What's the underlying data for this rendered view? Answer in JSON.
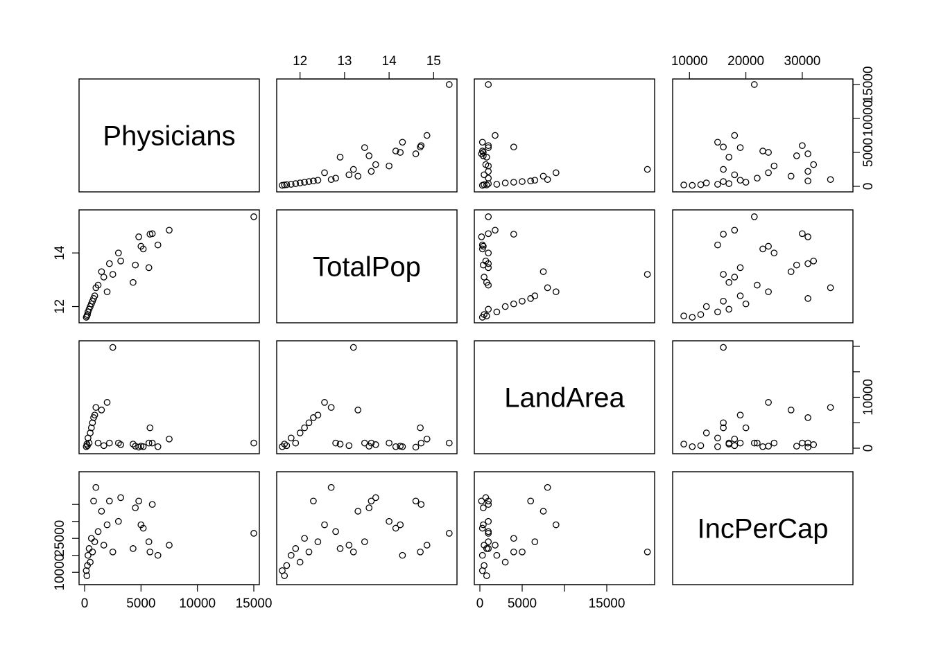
{
  "chart_data": {
    "type": "scatter",
    "subtype": "scatterplot-matrix",
    "variables": [
      "Physicians",
      "TotalPop",
      "LandArea",
      "IncPerCap"
    ],
    "ranges": {
      "Physicians": [
        0,
        15000
      ],
      "TotalPop": [
        11.6,
        15.4
      ],
      "LandArea": [
        0,
        20000
      ],
      "IncPerCap": [
        8000,
        38000
      ]
    },
    "axis_ticks": {
      "Physicians": {
        "values": [
          0,
          5000,
          10000,
          15000
        ],
        "labels": [
          "0",
          "5000",
          "10000",
          "15000"
        ]
      },
      "TotalPop": {
        "values": [
          12,
          13,
          14,
          15
        ],
        "labels": [
          "12",
          "13",
          "14",
          "15"
        ]
      },
      "TotalPop_left": {
        "values": [
          12,
          14
        ],
        "labels": [
          "12",
          "14"
        ]
      },
      "LandArea": {
        "values": [
          0,
          5000,
          10000,
          15000
        ],
        "labels": [
          "0",
          "5000",
          "",
          "15000"
        ]
      },
      "LandArea_right": {
        "values": [
          0,
          5000,
          10000,
          15000,
          20000
        ],
        "labels": [
          "0",
          "",
          "10000",
          "",
          ""
        ]
      },
      "IncPerCap": {
        "values": [
          10000,
          20000,
          30000
        ],
        "labels": [
          "10000",
          "20000",
          "30000"
        ]
      },
      "IncPerCap_left": {
        "values": [
          10000,
          15000,
          20000,
          25000,
          30000
        ],
        "labels": [
          "10000",
          "",
          "25000",
          "",
          ""
        ]
      }
    },
    "grid": false,
    "legend": "none",
    "point_style": "open-circle",
    "observations": [
      {
        "Physicians": 15000,
        "TotalPop": 15.35,
        "LandArea": 1000,
        "IncPerCap": 21500
      },
      {
        "Physicians": 7500,
        "TotalPop": 14.85,
        "LandArea": 1800,
        "IncPerCap": 18000
      },
      {
        "Physicians": 6500,
        "TotalPop": 14.3,
        "LandArea": 300,
        "IncPerCap": 15000
      },
      {
        "Physicians": 6000,
        "TotalPop": 14.72,
        "LandArea": 1000,
        "IncPerCap": 30000
      },
      {
        "Physicians": 5800,
        "TotalPop": 14.7,
        "LandArea": 4000,
        "IncPerCap": 16000
      },
      {
        "Physicians": 5700,
        "TotalPop": 13.45,
        "LandArea": 1000,
        "IncPerCap": 19000
      },
      {
        "Physicians": 5200,
        "TotalPop": 14.15,
        "LandArea": 300,
        "IncPerCap": 23000
      },
      {
        "Physicians": 5000,
        "TotalPop": 14.25,
        "LandArea": 400,
        "IncPerCap": 24000
      },
      {
        "Physicians": 4800,
        "TotalPop": 14.6,
        "LandArea": 200,
        "IncPerCap": 31000
      },
      {
        "Physicians": 4500,
        "TotalPop": 13.55,
        "LandArea": 400,
        "IncPerCap": 29000
      },
      {
        "Physicians": 4300,
        "TotalPop": 12.9,
        "LandArea": 800,
        "IncPerCap": 17000
      },
      {
        "Physicians": 3200,
        "TotalPop": 13.7,
        "LandArea": 700,
        "IncPerCap": 32000
      },
      {
        "Physicians": 3000,
        "TotalPop": 14.0,
        "LandArea": 1000,
        "IncPerCap": 25000
      },
      {
        "Physicians": 2500,
        "TotalPop": 13.2,
        "LandArea": 19800,
        "IncPerCap": 16000
      },
      {
        "Physicians": 2200,
        "TotalPop": 13.6,
        "LandArea": 1000,
        "IncPerCap": 31000
      },
      {
        "Physicians": 2000,
        "TotalPop": 12.55,
        "LandArea": 9000,
        "IncPerCap": 24000
      },
      {
        "Physicians": 1700,
        "TotalPop": 13.1,
        "LandArea": 500,
        "IncPerCap": 18000
      },
      {
        "Physicians": 1500,
        "TotalPop": 13.3,
        "LandArea": 7500,
        "IncPerCap": 28000
      },
      {
        "Physicians": 1200,
        "TotalPop": 12.8,
        "LandArea": 1000,
        "IncPerCap": 22000
      },
      {
        "Physicians": 1000,
        "TotalPop": 12.7,
        "LandArea": 8000,
        "IncPerCap": 35000
      },
      {
        "Physicians": 900,
        "TotalPop": 12.4,
        "LandArea": 6500,
        "IncPerCap": 19000
      },
      {
        "Physicians": 800,
        "TotalPop": 12.3,
        "LandArea": 6000,
        "IncPerCap": 31000
      },
      {
        "Physicians": 700,
        "TotalPop": 12.2,
        "LandArea": 5000,
        "IncPerCap": 16000
      },
      {
        "Physicians": 600,
        "TotalPop": 12.1,
        "LandArea": 4000,
        "IncPerCap": 20000
      },
      {
        "Physicians": 500,
        "TotalPop": 12.0,
        "LandArea": 3000,
        "IncPerCap": 13000
      },
      {
        "Physicians": 400,
        "TotalPop": 11.9,
        "LandArea": 1000,
        "IncPerCap": 17000
      },
      {
        "Physicians": 300,
        "TotalPop": 11.8,
        "LandArea": 2000,
        "IncPerCap": 15000
      },
      {
        "Physicians": 250,
        "TotalPop": 11.7,
        "LandArea": 500,
        "IncPerCap": 12000
      },
      {
        "Physicians": 200,
        "TotalPop": 11.65,
        "LandArea": 800,
        "IncPerCap": 9000
      },
      {
        "Physicians": 150,
        "TotalPop": 11.6,
        "LandArea": 300,
        "IncPerCap": 10500
      }
    ]
  }
}
